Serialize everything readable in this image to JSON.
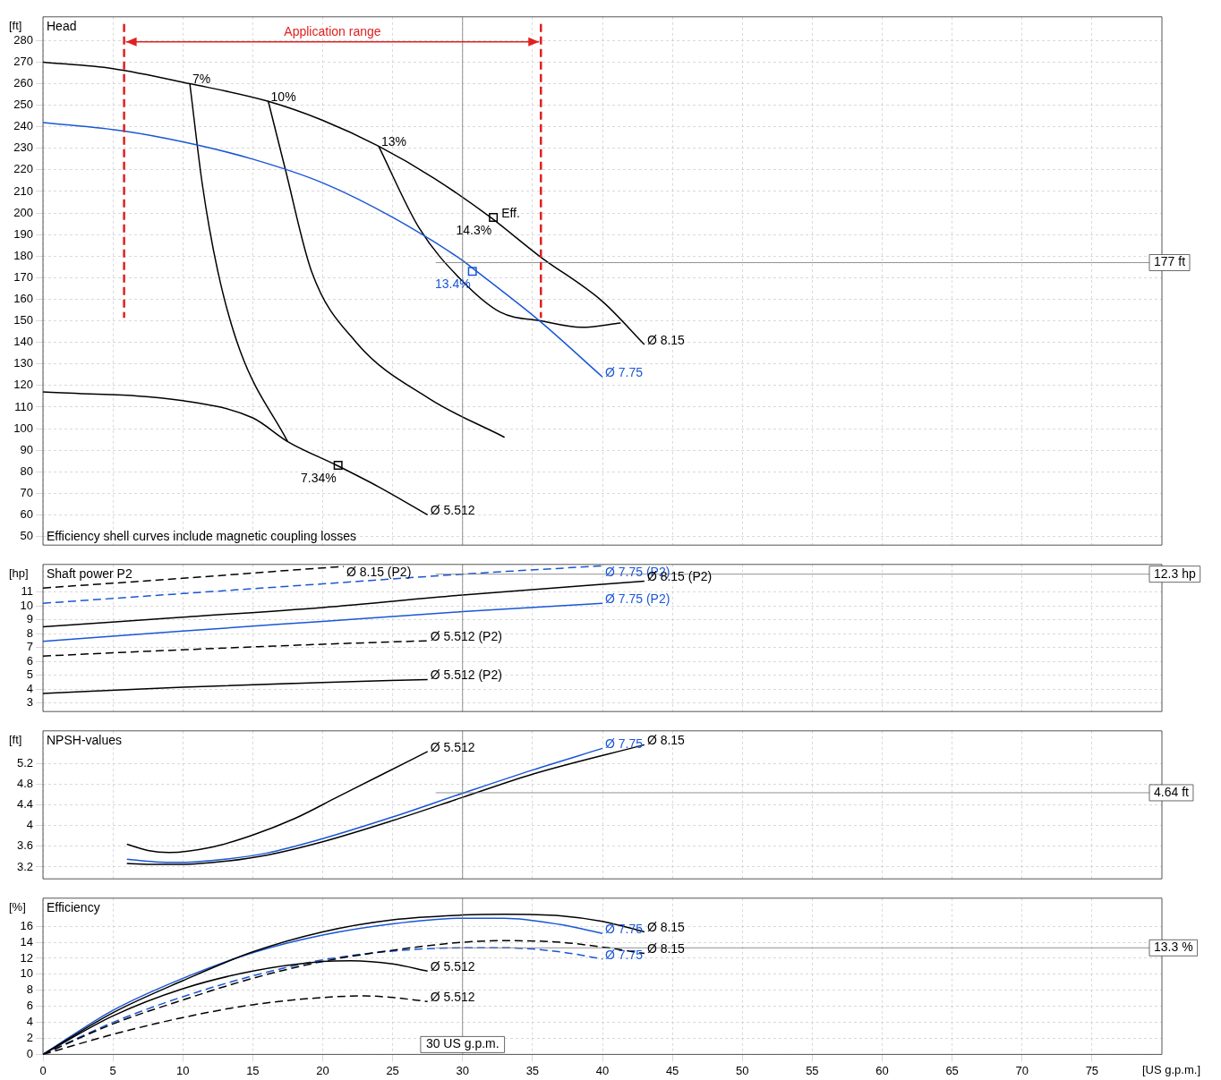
{
  "chart_data": [
    {
      "type": "line",
      "title": "Head",
      "ylabel": "[ft]",
      "xlim": [
        0,
        80
      ],
      "xticks": [
        0,
        5,
        10,
        15,
        20,
        25,
        30,
        35,
        40,
        45,
        50,
        55,
        60,
        65,
        70,
        75
      ],
      "ylim": [
        46,
        291
      ],
      "yticks": [
        50,
        60,
        70,
        80,
        90,
        100,
        110,
        120,
        130,
        140,
        150,
        160,
        170,
        180,
        190,
        200,
        210,
        220,
        230,
        240,
        250,
        260,
        270,
        280
      ],
      "grid": true,
      "tick_labels": "y",
      "series": [
        {
          "name": "Ø 8.15",
          "color": "#000000",
          "x": [
            0,
            5,
            10.5,
            16,
            20,
            24,
            28,
            32,
            35.5,
            40,
            43
          ],
          "values": [
            270,
            267,
            260,
            252,
            243,
            231,
            216,
            198,
            180,
            159,
            139
          ]
        },
        {
          "name": "Ø 7.75",
          "color": "#1a56d6",
          "x": [
            0,
            5.8,
            10,
            15,
            20,
            25,
            30,
            31,
            35.5,
            40
          ],
          "values": [
            242,
            238,
            233,
            225,
            214,
            198,
            178,
            173,
            150,
            124
          ]
        },
        {
          "name": "Ø 5.512",
          "color": "#000000",
          "x": [
            0,
            10,
            15,
            17.5,
            21,
            24,
            27.5
          ],
          "values": [
            117,
            113,
            105,
            94,
            83,
            73,
            60
          ]
        },
        {
          "name": "7%",
          "color": "#000000",
          "x": [
            17.5,
            14.1,
            12.5,
            11.4,
            10.5
          ],
          "values": [
            94,
            136,
            173,
            213,
            260
          ]
        },
        {
          "name": "10%",
          "color": "#000000",
          "x": [
            33,
            27.6,
            22.4,
            19.2,
            17.3,
            16.1
          ],
          "values": [
            96,
            114,
            140,
            173,
            221,
            252
          ]
        },
        {
          "name": "13%",
          "color": "#000000",
          "x": [
            41.3,
            38.5,
            35.6,
            32.7,
            29.9,
            26.9,
            24
          ],
          "values": [
            149,
            147,
            150,
            154,
            169,
            193,
            231
          ]
        },
        {
          "type": "scatter",
          "marker": "square",
          "color": "#000000",
          "colors": [
            "#000000",
            "#1a56d6",
            "#000000"
          ],
          "x": [
            32.2,
            30.7,
            21.1
          ],
          "values": [
            198,
            173,
            83
          ]
        }
      ],
      "ref_lines": [
        {
          "axis": "x",
          "value": 30
        },
        {
          "axis": "y",
          "value": 177,
          "label": "177 ft"
        },
        {
          "axis": "x",
          "value": 5.8,
          "label": "Application range",
          "color": "#e02020",
          "line_style": "dashed"
        },
        {
          "axis": "x",
          "value": 35.6,
          "color": "#e02020",
          "line_style": "dashed"
        }
      ],
      "annotations": [
        {
          "text": "14.3%",
          "x": 32.2,
          "y": 198
        },
        {
          "text": "Eff.",
          "x": 32.2,
          "y": 198
        },
        {
          "text": "13.4%",
          "x": 30.7,
          "y": 173
        },
        {
          "text": "7.34%",
          "x": 21.1,
          "y": 83
        },
        "Efficiency shell curves include magnetic coupling losses"
      ]
    },
    {
      "type": "line",
      "title": "Shaft power P2",
      "ylabel": "[hp]",
      "xlim": [
        0,
        80
      ],
      "xticks": [
        0,
        5,
        10,
        15,
        20,
        25,
        30,
        35,
        40,
        45,
        50,
        55,
        60,
        65,
        70,
        75
      ],
      "ylim": [
        2.4,
        13
      ],
      "yticks": [
        3,
        4,
        5,
        6,
        7,
        8,
        9,
        10,
        11
      ],
      "grid": true,
      "tick_labels": "y",
      "series": [
        {
          "name": "Ø 7.75 (P2)",
          "color": "#1a56d6",
          "line_style": "dashed",
          "x": [
            0,
            10,
            20,
            30,
            40
          ],
          "values": [
            10.2,
            10.9,
            11.6,
            12.3,
            12.9
          ]
        },
        {
          "name": "Ø 8.15 (P2)",
          "color": "#000000",
          "line_style": "dashed",
          "x": [
            0,
            10,
            20,
            21.5
          ],
          "values": [
            11.3,
            12,
            12.75,
            12.85
          ]
        },
        {
          "name": "Ø 8.15 (P2)",
          "color": "#000000",
          "line_style": "solid",
          "x": [
            0,
            10,
            20,
            30,
            43
          ],
          "values": [
            8.5,
            9.2,
            9.9,
            10.8,
            11.8
          ]
        },
        {
          "name": "Ø 7.75 (P2)",
          "color": "#1a56d6",
          "line_style": "solid",
          "x": [
            0,
            10,
            20,
            30,
            40
          ],
          "values": [
            7.45,
            8.2,
            8.9,
            9.6,
            10.2
          ]
        },
        {
          "name": "Ø 5.512 (P2)",
          "color": "#000000",
          "line_style": "dashed",
          "x": [
            0,
            10,
            20,
            27.5
          ],
          "values": [
            6.4,
            6.85,
            7.25,
            7.5
          ]
        },
        {
          "name": "Ø 5.512 (P2)",
          "color": "#000000",
          "line_style": "solid",
          "x": [
            0,
            10,
            20,
            27.5
          ],
          "values": [
            3.7,
            4.15,
            4.5,
            4.7
          ]
        }
      ],
      "ref_lines": [
        {
          "axis": "x",
          "value": 30
        },
        {
          "axis": "y",
          "value": 12.3,
          "label": "12.3 hp"
        }
      ]
    },
    {
      "type": "line",
      "title": "NPSH-values",
      "ylabel": "[ft]",
      "xlim": [
        0,
        80
      ],
      "xticks": [
        0,
        5,
        10,
        15,
        20,
        25,
        30,
        35,
        40,
        45,
        50,
        55,
        60,
        65,
        70,
        75
      ],
      "ylim": [
        2.97,
        5.84
      ],
      "yticks": [
        3.2,
        3.6,
        4,
        4.4,
        4.8,
        5.2
      ],
      "grid": true,
      "tick_labels": "y",
      "series": [
        {
          "name": "Ø 5.512",
          "color": "#000000",
          "x": [
            6,
            7.5,
            9,
            12,
            15,
            18,
            21,
            24,
            27.5
          ],
          "values": [
            3.64,
            3.52,
            3.48,
            3.58,
            3.82,
            4.14,
            4.55,
            4.96,
            5.44
          ]
        },
        {
          "name": "Ø 7.75",
          "color": "#1a56d6",
          "x": [
            6,
            8,
            10,
            13,
            16,
            20,
            25,
            30,
            35,
            40
          ],
          "values": [
            3.35,
            3.3,
            3.29,
            3.35,
            3.47,
            3.75,
            4.17,
            4.63,
            5.08,
            5.5
          ]
        },
        {
          "name": "Ø 8.15",
          "color": "#000000",
          "x": [
            6,
            8,
            10,
            13,
            16,
            20,
            25,
            30,
            35,
            43
          ],
          "values": [
            3.27,
            3.25,
            3.25,
            3.31,
            3.43,
            3.69,
            4.1,
            4.55,
            5,
            5.57
          ]
        }
      ],
      "ref_lines": [
        {
          "axis": "x",
          "value": 30
        },
        {
          "axis": "y",
          "value": 4.64,
          "label": "4.64 ft"
        }
      ]
    },
    {
      "type": "line",
      "title": "Efficiency",
      "ylabel": "[%]",
      "xlabel": "[US g.p.m.]",
      "xlim": [
        0,
        80
      ],
      "xticks": [
        0,
        5,
        10,
        15,
        20,
        25,
        30,
        35,
        40,
        45,
        50,
        55,
        60,
        65,
        70,
        75
      ],
      "ylim": [
        0,
        19.5
      ],
      "yticks": [
        0,
        2,
        4,
        6,
        8,
        10,
        12,
        14,
        16
      ],
      "grid": true,
      "series": [
        {
          "name": "Ø 8.15",
          "color": "#000000",
          "line_style": "solid",
          "x": [
            0,
            5,
            10,
            15,
            20,
            25,
            30,
            33,
            37,
            40,
            43
          ],
          "values": [
            0,
            5.2,
            9.2,
            12.8,
            15.3,
            16.8,
            17.4,
            17.5,
            17.3,
            16.6,
            15.3
          ]
        },
        {
          "name": "Ø 7.75",
          "color": "#1a56d6",
          "line_style": "solid",
          "x": [
            0,
            5,
            10,
            15,
            20,
            25,
            30,
            33,
            37,
            40
          ],
          "values": [
            0,
            5.5,
            9.5,
            12.7,
            14.9,
            16.3,
            17,
            17,
            16.2,
            15.1
          ]
        },
        {
          "name": "Ø 5.512",
          "color": "#000000",
          "line_style": "solid",
          "x": [
            0,
            5,
            10,
            15,
            20,
            22,
            25,
            27.5
          ],
          "values": [
            0,
            4.8,
            8.2,
            10.4,
            11.6,
            11.7,
            11.3,
            10.4
          ]
        },
        {
          "name": "Ø 8.15",
          "color": "#000000",
          "line_style": "dashed",
          "x": [
            0,
            5,
            10,
            15,
            20,
            25,
            30,
            33,
            37,
            40,
            43
          ],
          "values": [
            0,
            3.8,
            6.8,
            9.5,
            11.6,
            13,
            14,
            14.2,
            14,
            13.4,
            12.6
          ]
        },
        {
          "name": "Ø 7.75",
          "color": "#1a56d6",
          "line_style": "dashed",
          "x": [
            0,
            5,
            10,
            15,
            20,
            25,
            30,
            33,
            37,
            40
          ],
          "values": [
            0,
            4,
            7.2,
            9.8,
            11.8,
            12.9,
            13.3,
            13.3,
            12.8,
            11.9
          ]
        },
        {
          "name": "Ø 5.512",
          "color": "#000000",
          "line_style": "dashed",
          "x": [
            0,
            5,
            10,
            15,
            20,
            23,
            25,
            27.5
          ],
          "values": [
            0,
            2.5,
            4.6,
            6.2,
            7.1,
            7.3,
            7.1,
            6.6
          ]
        }
      ],
      "ref_lines": [
        {
          "axis": "x",
          "value": 30,
          "label": "30 US g.p.m."
        },
        {
          "axis": "y",
          "value": 13.3,
          "label": "13.3 %"
        }
      ]
    }
  ]
}
